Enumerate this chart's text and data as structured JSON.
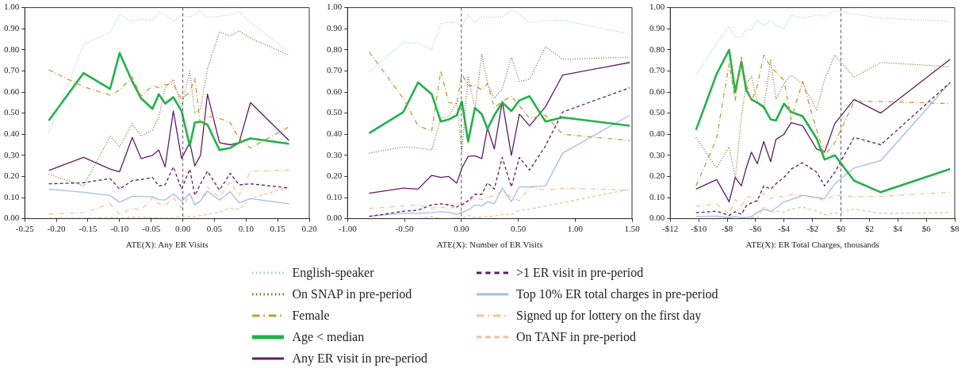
{
  "chart_data": [
    {
      "type": "line",
      "xlabel": "ATE(X): Any ER Visits",
      "legend": "bottom",
      "x": [
        -0.212,
        -0.157,
        -0.115,
        -0.1,
        -0.08,
        -0.066,
        -0.048,
        -0.038,
        -0.028,
        -0.015,
        -0.002,
        0.011,
        0.019,
        0.028,
        0.039,
        0.058,
        0.075,
        0.089,
        0.107,
        0.168
      ],
      "xlim": [
        -0.25,
        0.2
      ],
      "xticks": [
        {
          "value": -0.25,
          "label": "-0.25"
        },
        {
          "value": -0.2,
          "label": "-0.20"
        },
        {
          "value": -0.15,
          "label": "-0.15"
        },
        {
          "value": -0.1,
          "label": "-0.10"
        },
        {
          "value": -0.05,
          "label": "-0.05"
        },
        {
          "value": 0,
          "label": "0.00"
        },
        {
          "value": 0.05,
          "label": "0.05"
        },
        {
          "value": 0.1,
          "label": "0.10"
        },
        {
          "value": 0.15,
          "label": "0.15"
        },
        {
          "value": 0.2,
          "label": "0.20"
        }
      ],
      "ylim": [
        0,
        1
      ],
      "yticks": [
        {
          "value": 0,
          "label": "0.00"
        },
        {
          "value": 0.1,
          "label": "0.10"
        },
        {
          "value": 0.2,
          "label": "0.20"
        },
        {
          "value": 0.3,
          "label": "0.30"
        },
        {
          "value": 0.4,
          "label": "0.40"
        },
        {
          "value": 0.5,
          "label": "0.50"
        },
        {
          "value": 0.6,
          "label": "0.60"
        },
        {
          "value": 0.7,
          "label": "0.70"
        },
        {
          "value": 0.8,
          "label": "0.80"
        },
        {
          "value": 0.9,
          "label": "0.90"
        },
        {
          "value": 1,
          "label": "1.00"
        }
      ],
      "ref_lines": [
        {
          "axis": "x",
          "value": 0,
          "color": "#555555",
          "line_style": "dashed"
        }
      ],
      "series": [
        {
          "name": "English-speaker",
          "color": "#aec7e8",
          "line_style": "dotted",
          "values": [
            0.405,
            0.825,
            0.885,
            0.965,
            0.935,
            0.945,
            0.94,
            0.975,
            0.97,
            0.935,
            0.965,
            0.955,
            0.965,
            0.985,
            0.955,
            0.96,
            0.965,
            0.98,
            0.93,
            0.79
          ]
        },
        {
          "name": "On SNAP in pre-period",
          "color": "#8c6d31",
          "line_style": "dotted",
          "values": [
            0.21,
            0.155,
            0.39,
            0.34,
            0.45,
            0.39,
            0.42,
            0.48,
            0.62,
            0.66,
            0.53,
            0.7,
            0.5,
            0.52,
            0.71,
            0.885,
            0.865,
            0.89,
            0.855,
            0.775
          ]
        },
        {
          "name": "Female",
          "color": "#bd9e39",
          "line_style": "dashdot",
          "values": [
            0.705,
            0.625,
            0.585,
            0.61,
            0.67,
            0.58,
            0.63,
            0.62,
            0.635,
            0.635,
            0.565,
            0.6,
            0.665,
            0.44,
            0.485,
            0.475,
            0.455,
            0.38,
            0.335,
            0.435
          ]
        },
        {
          "name": "Age < median",
          "color": "#22b14c",
          "line_style": "solid",
          "values": [
            0.465,
            0.69,
            0.615,
            0.785,
            0.65,
            0.57,
            0.52,
            0.59,
            0.545,
            0.575,
            0.51,
            0.345,
            0.455,
            0.46,
            0.445,
            0.325,
            0.335,
            0.36,
            0.38,
            0.355
          ]
        },
        {
          "name": "Any ER visit in pre-period",
          "color": "#5e1d62",
          "line_style": "solid",
          "values": [
            0.228,
            0.29,
            0.235,
            0.222,
            0.385,
            0.285,
            0.3,
            0.325,
            0.245,
            0.51,
            0.285,
            0.36,
            0.25,
            0.3,
            0.59,
            0.36,
            0.35,
            0.36,
            0.55,
            0.37
          ]
        },
        {
          "name": ">1 ER visit in pre-period",
          "color": "#5e1d62",
          "line_style": "dashed",
          "values": [
            0.165,
            0.17,
            0.19,
            0.14,
            0.18,
            0.185,
            0.195,
            0.155,
            0.16,
            0.245,
            0.14,
            0.235,
            0.11,
            0.165,
            0.225,
            0.135,
            0.215,
            0.16,
            0.165,
            0.145
          ]
        },
        {
          "name": "Top 10% ER total charges in pre-period",
          "color": "#a4bde6",
          "line_style": "solid",
          "values": [
            0.14,
            0.125,
            0.11,
            0.078,
            0.105,
            0.105,
            0.103,
            0.09,
            0.088,
            0.117,
            0.082,
            0.12,
            0.065,
            0.085,
            0.13,
            0.088,
            0.128,
            0.075,
            0.095,
            0.07
          ]
        },
        {
          "name": "Signed up for lottery on the first day",
          "color": "#f5c09a",
          "line_style": "dashdot",
          "values": [
            0.022,
            0.028,
            0.07,
            0.02,
            0.05,
            0.04,
            0.1,
            0.07,
            0.06,
            0.1,
            0.05,
            0.115,
            0.07,
            0.08,
            0.15,
            0.1,
            0.175,
            0.11,
            0.225,
            0.23
          ]
        },
        {
          "name": "On TANF in pre-period",
          "color": "#f5c09a",
          "line_style": "dashed",
          "values": [
            0.003,
            0.003,
            0.005,
            0.003,
            0.008,
            0.005,
            0.005,
            0.003,
            0.003,
            0.003,
            0.012,
            0.01,
            0.008,
            0.015,
            0.02,
            0.03,
            0.05,
            0.045,
            0.095,
            0.15
          ]
        }
      ]
    },
    {
      "type": "line",
      "xlabel": "ATE(X): Number of ER Visits",
      "x": [
        -0.81,
        -0.51,
        -0.38,
        -0.26,
        -0.18,
        -0.11,
        -0.04,
        0.005,
        0.06,
        0.12,
        0.18,
        0.23,
        0.29,
        0.36,
        0.44,
        0.51,
        0.6,
        0.74,
        0.89,
        1.48
      ],
      "xlim": [
        -1,
        1.5
      ],
      "xticks": [
        {
          "value": -1,
          "label": "-1.00"
        },
        {
          "value": -0.5,
          "label": "-0.50"
        },
        {
          "value": 0,
          "label": "0.00"
        },
        {
          "value": 0.5,
          "label": "0.50"
        },
        {
          "value": 1,
          "label": "1.00"
        },
        {
          "value": 1.5,
          "label": "1.50"
        }
      ],
      "ylim": [
        0,
        1
      ],
      "yticks": [
        {
          "value": 0,
          "label": "0.00"
        },
        {
          "value": 0.1,
          "label": "0.10"
        },
        {
          "value": 0.2,
          "label": "0.20"
        },
        {
          "value": 0.3,
          "label": "0.30"
        },
        {
          "value": 0.4,
          "label": "0.40"
        },
        {
          "value": 0.5,
          "label": "0.50"
        },
        {
          "value": 0.6,
          "label": "0.60"
        },
        {
          "value": 0.7,
          "label": "0.70"
        },
        {
          "value": 0.8,
          "label": "0.80"
        },
        {
          "value": 0.9,
          "label": "0.90"
        },
        {
          "value": 1,
          "label": "1.00"
        }
      ],
      "ref_lines": [
        {
          "axis": "x",
          "value": 0,
          "color": "#555555",
          "line_style": "dashed"
        }
      ],
      "series": [
        {
          "color": "#aec7e8",
          "line_style": "dotted",
          "values": [
            0.695,
            0.835,
            0.83,
            0.8,
            0.925,
            0.93,
            0.93,
            0.91,
            0.965,
            0.93,
            0.955,
            0.955,
            0.955,
            0.955,
            0.99,
            0.97,
            0.93,
            0.94,
            0.94,
            0.875
          ]
        },
        {
          "color": "#8c6d31",
          "line_style": "dotted",
          "values": [
            0.31,
            0.34,
            0.335,
            0.325,
            0.475,
            0.485,
            0.55,
            0.32,
            0.675,
            0.52,
            0.78,
            0.64,
            0.57,
            0.615,
            0.765,
            0.65,
            0.66,
            0.815,
            0.755,
            0.765
          ]
        },
        {
          "color": "#bd9e39",
          "line_style": "dashdot",
          "values": [
            0.79,
            0.57,
            0.44,
            0.415,
            0.7,
            0.55,
            0.545,
            0.685,
            0.63,
            0.63,
            0.61,
            0.64,
            0.525,
            0.555,
            0.58,
            0.535,
            0.475,
            0.49,
            0.4,
            0.37
          ]
        },
        {
          "color": "#22b14c",
          "line_style": "solid",
          "values": [
            0.405,
            0.505,
            0.645,
            0.59,
            0.46,
            0.47,
            0.49,
            0.555,
            0.365,
            0.525,
            0.495,
            0.425,
            0.49,
            0.55,
            0.51,
            0.56,
            0.58,
            0.46,
            0.48,
            0.44
          ]
        },
        {
          "color": "#5e1d62",
          "line_style": "solid",
          "values": [
            0.12,
            0.145,
            0.14,
            0.205,
            0.195,
            0.2,
            0.168,
            0.24,
            0.295,
            0.298,
            0.285,
            0.43,
            0.33,
            0.555,
            0.3,
            0.495,
            0.44,
            0.53,
            0.68,
            0.74
          ]
        },
        {
          "color": "#5e1d62",
          "line_style": "dashed",
          "values": [
            0.01,
            0.035,
            0.04,
            0.065,
            0.07,
            0.065,
            0.055,
            0.065,
            0.085,
            0.115,
            0.115,
            0.17,
            0.14,
            0.29,
            0.15,
            0.29,
            0.23,
            0.345,
            0.505,
            0.62
          ]
        },
        {
          "color": "#a4bde6",
          "line_style": "solid",
          "values": [
            0.012,
            0.025,
            0.025,
            0.028,
            0.033,
            0.03,
            0.02,
            0.03,
            0.04,
            0.065,
            0.06,
            0.08,
            0.07,
            0.145,
            0.08,
            0.15,
            0.15,
            0.155,
            0.31,
            0.49
          ]
        },
        {
          "color": "#f5c09a",
          "line_style": "dashdot",
          "values": [
            0.048,
            0.06,
            0.065,
            0.05,
            0.055,
            0.045,
            0.06,
            0.065,
            0.085,
            0.1,
            0.09,
            0.1,
            0.11,
            0.13,
            0.1,
            0.085,
            0.15,
            0.135,
            0.145,
            0.135
          ]
        },
        {
          "color": "#f5c09a",
          "line_style": "dashed",
          "values": [
            0,
            0,
            0,
            0.01,
            0,
            0,
            0.005,
            0,
            0.015,
            0.005,
            0.007,
            0.01,
            0.012,
            0.02,
            0.02,
            0.04,
            0.045,
            0.06,
            0.075,
            0.14
          ]
        }
      ]
    },
    {
      "type": "line",
      "xlabel": "ATE(X): ER Total Charges, thousands",
      "x": [
        -10.19,
        -8.74,
        -7.86,
        -7.43,
        -7.0,
        -6.66,
        -6.29,
        -5.88,
        -5.43,
        -4.94,
        -4.57,
        -4.0,
        -3.5,
        -2.69,
        -1.71,
        -1.15,
        -0.43,
        0.92,
        2.8,
        7.68
      ],
      "xlim": [
        -12,
        8
      ],
      "xticks": [
        {
          "value": -12,
          "label": "-$12"
        },
        {
          "value": -10,
          "label": "-$10"
        },
        {
          "value": -8,
          "label": "-$8"
        },
        {
          "value": -6,
          "label": "-$6"
        },
        {
          "value": -4,
          "label": "-$4"
        },
        {
          "value": -2,
          "label": "-$2"
        },
        {
          "value": 0,
          "label": "$0"
        },
        {
          "value": 2,
          "label": "$2"
        },
        {
          "value": 4,
          "label": "$4"
        },
        {
          "value": 6,
          "label": "$6"
        },
        {
          "value": 8,
          "label": "$8"
        }
      ],
      "ylim": [
        0,
        1
      ],
      "yticks": [
        {
          "value": 0,
          "label": "0.00"
        },
        {
          "value": 0.1,
          "label": "0.10"
        },
        {
          "value": 0.2,
          "label": "0.20"
        },
        {
          "value": 0.3,
          "label": "0.30"
        },
        {
          "value": 0.4,
          "label": "0.40"
        },
        {
          "value": 0.5,
          "label": "0.50"
        },
        {
          "value": 0.6,
          "label": "0.60"
        },
        {
          "value": 0.7,
          "label": "0.70"
        },
        {
          "value": 0.8,
          "label": "0.80"
        },
        {
          "value": 0.9,
          "label": "0.90"
        },
        {
          "value": 1,
          "label": "1.00"
        }
      ],
      "ref_lines": [
        {
          "axis": "x",
          "value": 0,
          "color": "#555555",
          "line_style": "dashed"
        }
      ],
      "series": [
        {
          "color": "#aec7e8",
          "line_style": "dotted",
          "values": [
            0.68,
            0.83,
            0.91,
            0.86,
            0.86,
            0.895,
            0.895,
            0.94,
            0.915,
            0.94,
            0.915,
            0.9,
            0.965,
            0.95,
            0.965,
            0.96,
            0.985,
            0.97,
            0.95,
            0.935
          ]
        },
        {
          "color": "#8c6d31",
          "line_style": "dotted",
          "values": [
            0.385,
            0.24,
            0.34,
            0.19,
            0.48,
            0.64,
            0.675,
            0.55,
            0.52,
            0.755,
            0.565,
            0.64,
            0.68,
            0.64,
            0.515,
            0.66,
            0.775,
            0.67,
            0.74,
            0.72
          ]
        },
        {
          "color": "#bd9e39",
          "line_style": "dashdot",
          "values": [
            0.155,
            0.38,
            0.735,
            0.56,
            0.765,
            0.64,
            0.555,
            0.63,
            0.775,
            0.72,
            0.695,
            0.655,
            0.47,
            0.65,
            0.42,
            0.3,
            0.36,
            0.555,
            0.555,
            0.545
          ]
        },
        {
          "color": "#22b14c",
          "line_style": "solid",
          "values": [
            0.42,
            0.685,
            0.8,
            0.6,
            0.745,
            0.61,
            0.565,
            0.55,
            0.53,
            0.47,
            0.465,
            0.545,
            0.505,
            0.485,
            0.38,
            0.28,
            0.3,
            0.18,
            0.125,
            0.235
          ]
        },
        {
          "color": "#5e1d62",
          "line_style": "solid",
          "values": [
            0.14,
            0.185,
            0.08,
            0.195,
            0.155,
            0.24,
            0.315,
            0.26,
            0.365,
            0.27,
            0.375,
            0.4,
            0.455,
            0.44,
            0.33,
            0.315,
            0.45,
            0.565,
            0.5,
            0.755
          ]
        },
        {
          "color": "#5e1d62",
          "line_style": "dashed",
          "values": [
            0.028,
            0.035,
            0.015,
            0.033,
            0.02,
            0.06,
            0.075,
            0.085,
            0.155,
            0.14,
            0.165,
            0.195,
            0.235,
            0.265,
            0.22,
            0.155,
            0.22,
            0.385,
            0.35,
            0.645
          ]
        },
        {
          "color": "#a4bde6",
          "line_style": "solid",
          "values": [
            0.01,
            0.012,
            0.005,
            0.01,
            0.005,
            0.005,
            0.01,
            0.03,
            0.045,
            0.035,
            0.05,
            0.08,
            0.09,
            0.11,
            0.1,
            0.095,
            0.165,
            0.24,
            0.275,
            0.645
          ]
        },
        {
          "color": "#f5c09a",
          "line_style": "dashdot",
          "values": [
            0.058,
            0.07,
            0.02,
            0.09,
            0.06,
            0.1,
            0.105,
            0.08,
            0.12,
            0.095,
            0.11,
            0.1,
            0.115,
            0.11,
            0.1,
            0.085,
            0.11,
            0.105,
            0.105,
            0.125
          ]
        },
        {
          "color": "#f5c09a",
          "line_style": "dashed",
          "values": [
            0,
            0,
            0.01,
            0,
            0,
            0,
            0.005,
            0.005,
            0.055,
            0.03,
            0.035,
            0.03,
            0.045,
            0.055,
            0.035,
            0.018,
            0.025,
            0.045,
            0.025,
            0.028
          ]
        }
      ]
    }
  ]
}
